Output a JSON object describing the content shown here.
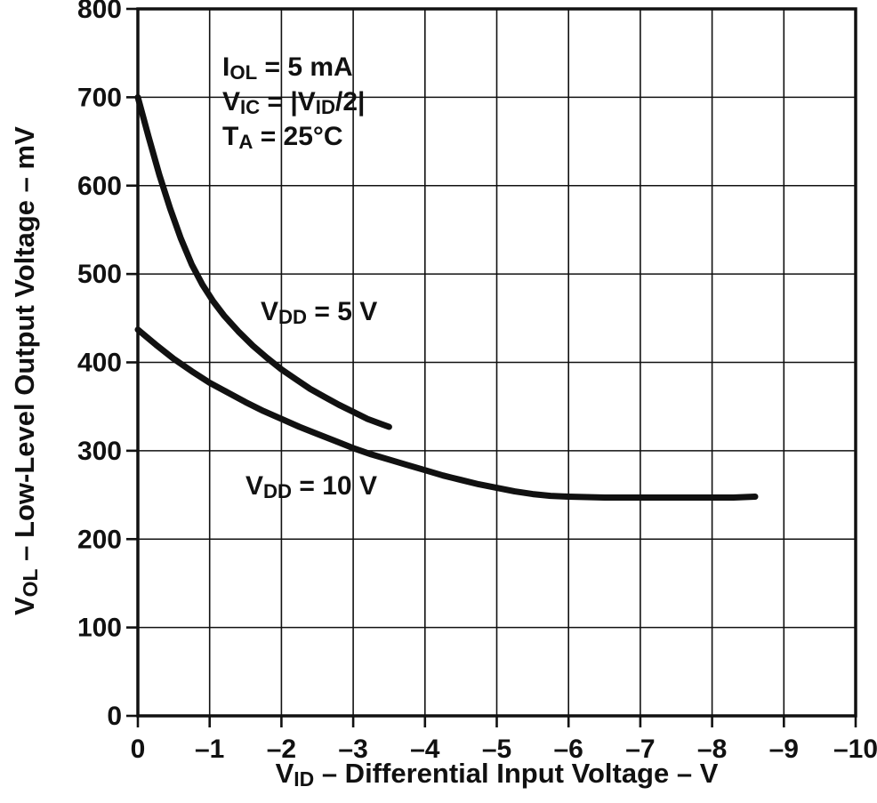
{
  "chart_data": {
    "type": "line",
    "title": "",
    "xlabel": {
      "pre": "V",
      "sub": "ID",
      "post": " – Differential Input Voltage – V"
    },
    "ylabel": {
      "pre": "V",
      "sub": "OL",
      "post": " – Low-Level Output Voltage – mV"
    },
    "xlim": [
      0,
      -10
    ],
    "ylim": [
      0,
      800
    ],
    "grid": true,
    "legend_position": "inline-curve-labels",
    "x_ticks": [
      {
        "v": 0,
        "label": "0"
      },
      {
        "v": -1,
        "label": "–1"
      },
      {
        "v": -2,
        "label": "–2"
      },
      {
        "v": -3,
        "label": "–3"
      },
      {
        "v": -4,
        "label": "–4"
      },
      {
        "v": -5,
        "label": "–5"
      },
      {
        "v": -6,
        "label": "–6"
      },
      {
        "v": -7,
        "label": "–7"
      },
      {
        "v": -8,
        "label": "–8"
      },
      {
        "v": -9,
        "label": "–9"
      },
      {
        "v": -10,
        "label": "–10"
      }
    ],
    "y_ticks": [
      {
        "v": 0,
        "label": "0"
      },
      {
        "v": 100,
        "label": "100"
      },
      {
        "v": 200,
        "label": "200"
      },
      {
        "v": 300,
        "label": "300"
      },
      {
        "v": 400,
        "label": "400"
      },
      {
        "v": 500,
        "label": "500"
      },
      {
        "v": 600,
        "label": "600"
      },
      {
        "v": 700,
        "label": "700"
      },
      {
        "v": 800,
        "label": "800"
      }
    ],
    "annotations": {
      "conditions": {
        "line1": {
          "pre": "I",
          "sub": "OL",
          "post": " = 5 mA"
        },
        "line2": {
          "pre": "V",
          "sub1": "IC",
          "mid": " =  |V",
          "sub2": "ID",
          "post": "/2|"
        },
        "line3": {
          "pre": "T",
          "sub": "A",
          "post": " = 25°C"
        }
      },
      "series_labels": [
        {
          "pre": "V",
          "sub": "DD",
          "post": " = 5 V"
        },
        {
          "pre": "V",
          "sub": "DD",
          "post": " = 10 V"
        }
      ]
    },
    "series": [
      {
        "name": "VDD = 5 V",
        "points": [
          [
            0,
            700
          ],
          [
            -0.15,
            655
          ],
          [
            -0.3,
            612
          ],
          [
            -0.45,
            574
          ],
          [
            -0.6,
            540
          ],
          [
            -0.75,
            511
          ],
          [
            -0.9,
            488
          ],
          [
            -1.05,
            469
          ],
          [
            -1.2,
            453
          ],
          [
            -1.4,
            435
          ],
          [
            -1.6,
            419
          ],
          [
            -1.8,
            405
          ],
          [
            -2,
            392
          ],
          [
            -2.2,
            381
          ],
          [
            -2.4,
            370
          ],
          [
            -2.6,
            361
          ],
          [
            -2.8,
            352
          ],
          [
            -3,
            344
          ],
          [
            -3.2,
            336
          ],
          [
            -3.4,
            330
          ],
          [
            -3.5,
            327
          ]
        ]
      },
      {
        "name": "VDD = 10 V",
        "points": [
          [
            0,
            437
          ],
          [
            -0.25,
            420
          ],
          [
            -0.5,
            404
          ],
          [
            -0.75,
            390
          ],
          [
            -1,
            377
          ],
          [
            -1.25,
            366
          ],
          [
            -1.5,
            355
          ],
          [
            -1.75,
            345
          ],
          [
            -2,
            336
          ],
          [
            -2.25,
            327
          ],
          [
            -2.5,
            319
          ],
          [
            -2.75,
            311
          ],
          [
            -3,
            303
          ],
          [
            -3.25,
            296
          ],
          [
            -3.5,
            290
          ],
          [
            -3.75,
            284
          ],
          [
            -4,
            278
          ],
          [
            -4.25,
            272
          ],
          [
            -4.5,
            267
          ],
          [
            -4.75,
            262
          ],
          [
            -5,
            258
          ],
          [
            -5.25,
            254
          ],
          [
            -5.5,
            251
          ],
          [
            -5.75,
            249
          ],
          [
            -6,
            248
          ],
          [
            -6.5,
            247
          ],
          [
            -7,
            247
          ],
          [
            -7.5,
            247
          ],
          [
            -8,
            247
          ],
          [
            -8.3,
            247
          ],
          [
            -8.6,
            248
          ]
        ]
      }
    ]
  }
}
